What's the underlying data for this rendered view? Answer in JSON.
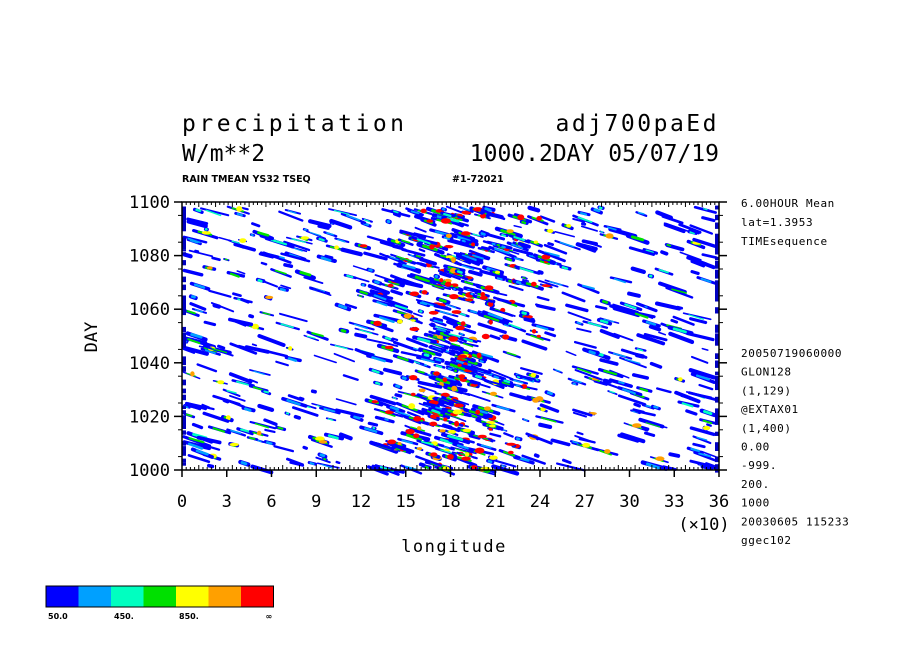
{
  "header": {
    "variable": "precipitation",
    "experiment": "adj700paEd",
    "units": "W/m**2",
    "time_stamp": "1000.2DAY 05/07/19",
    "subtitle_left": "RAIN TMEAN YS32 TSEQ",
    "subtitle_right": "#1-72021"
  },
  "side_info": {
    "top": [
      "6.00HOUR Mean",
      "lat=1.3953",
      "TIMEsequence"
    ],
    "bottom": [
      "20050719060000",
      "GLON128",
      "(1,129)",
      "@EXTAX01",
      "(1,400)",
      "0.00",
      "-999.",
      "200.",
      "1000",
      "20030605 115233",
      "ggec102"
    ]
  },
  "colorbar": {
    "colors": [
      "#0000ff",
      "#00a0ff",
      "#00ffc0",
      "#00e000",
      "#ffff00",
      "#ffa000",
      "#ff0000"
    ],
    "labels": [
      "50.0",
      "450.",
      "850.",
      "∞"
    ]
  },
  "chart_data": {
    "type": "heatmap",
    "title": "precipitation",
    "xlabel": "longitude",
    "ylabel": "DAY",
    "x_multiplier_label": "(×10)",
    "xlim": [
      0,
      36
    ],
    "ylim": [
      1000,
      1100
    ],
    "x_ticks": [
      "0",
      "3",
      "6",
      "9",
      "12",
      "15",
      "18",
      "21",
      "24",
      "27",
      "30",
      "33",
      "36"
    ],
    "y_ticks": [
      "1000",
      "1020",
      "1040",
      "1060",
      "1080",
      "1100"
    ],
    "contour_levels": [
      50,
      250,
      450,
      650,
      850,
      1050,
      1250
    ],
    "level_colors": [
      "#0000ff",
      "#00a0ff",
      "#00ffc0",
      "#00e000",
      "#ffff00",
      "#ffa000",
      "#ff0000"
    ],
    "field_description": "eastward-propagating rain streaks; densest near longitude 170-200"
  }
}
